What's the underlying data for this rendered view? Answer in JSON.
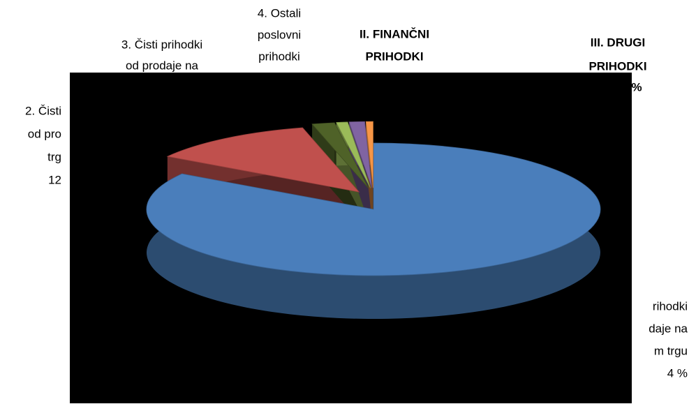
{
  "chart_data": {
    "type": "pie3d",
    "categories": [
      null,
      null,
      null,
      null,
      null,
      null
    ],
    "values": [
      84,
      12,
      1.6,
      0.8,
      1.1,
      0.5
    ],
    "colors": [
      "#4a7ebb",
      "#c0504d",
      "#4f6228",
      "#9bbb59",
      "#8064a2",
      "#f79646"
    ],
    "labels": [
      [
        "rihodki",
        "daje na",
        "m trgu",
        "4 %"
      ],
      [
        "2. Čisti",
        "od pro",
        "trg",
        "12"
      ],
      [
        "3. Čisti prihodki",
        "od prodaje na"
      ],
      [
        "4. Ostali",
        "poslovni",
        "prihodki"
      ],
      [
        "II. FINANČNI",
        "PRIHODKI"
      ],
      [
        "III. DRUGI",
        "PRIHODKI",
        "%"
      ]
    ]
  }
}
